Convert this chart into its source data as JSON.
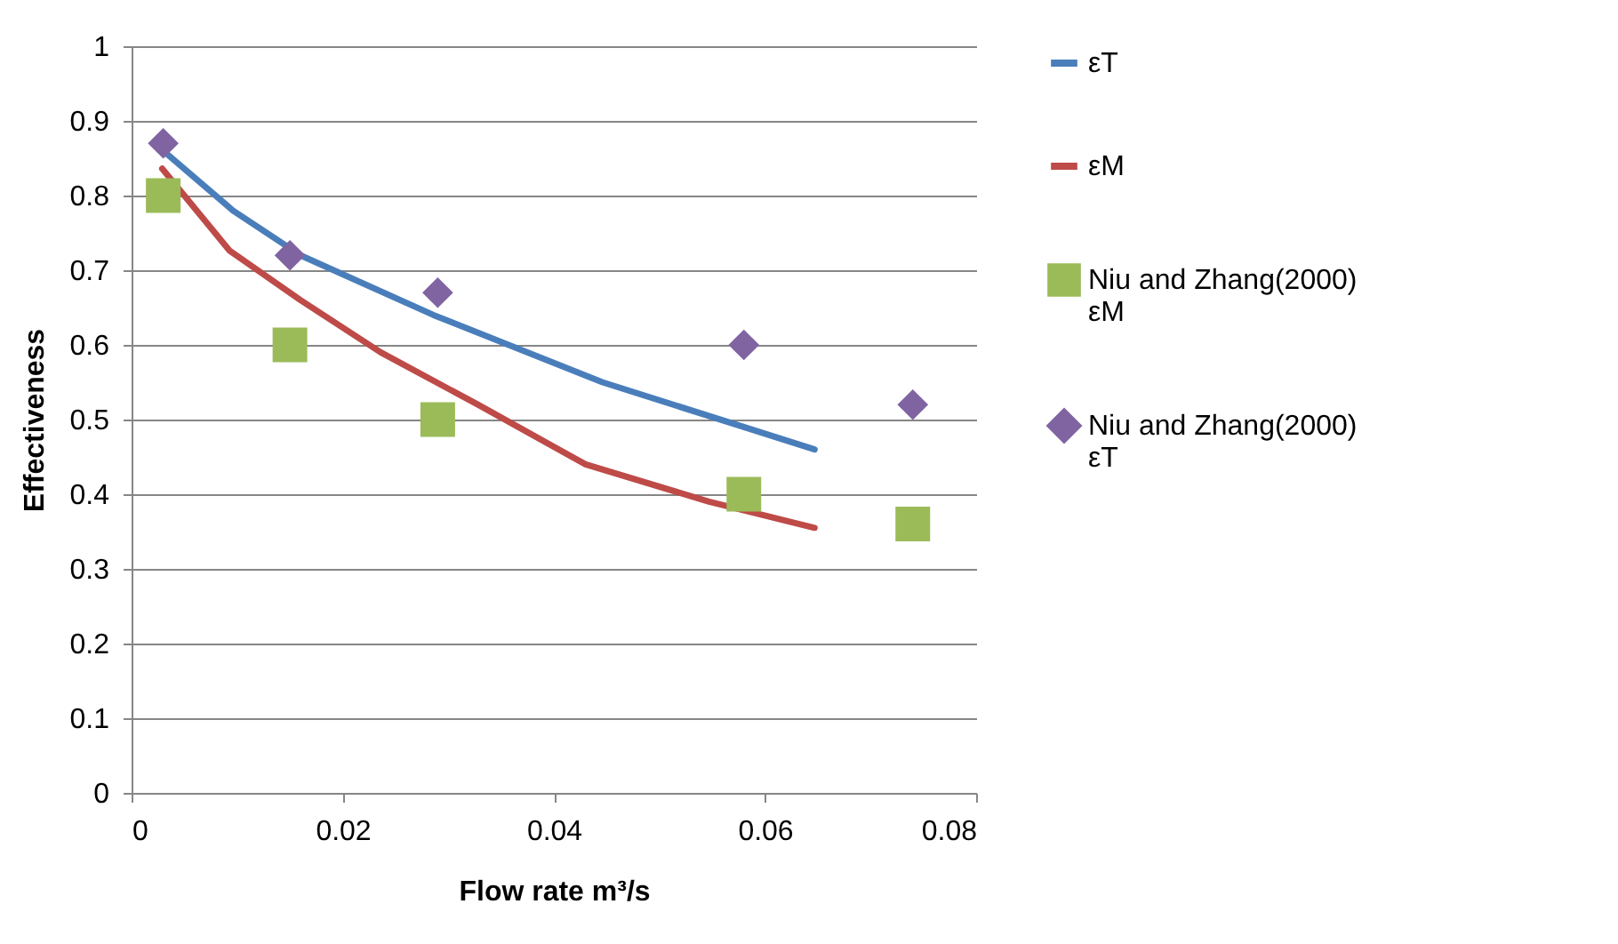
{
  "chart_data": {
    "type": "line",
    "xlabel": "Flow rate m³/s",
    "ylabel": "Effectiveness",
    "xlim": [
      0,
      0.08
    ],
    "ylim": [
      0,
      1
    ],
    "xticks": [
      0,
      0.02,
      0.04,
      0.06,
      0.08
    ],
    "yticks": [
      0,
      0.1,
      0.2,
      0.3,
      0.4,
      0.5,
      0.6,
      0.7,
      0.8,
      0.9,
      1
    ],
    "grid": "y",
    "legend": "right",
    "series": [
      {
        "name": "εT",
        "color": "#4a7ebb",
        "marker": "none",
        "x": [
          0.003,
          0.0096,
          0.016,
          0.0286,
          0.0446,
          0.058,
          0.0647
        ],
        "values": [
          0.86,
          0.78,
          0.72,
          0.64,
          0.55,
          0.49,
          0.46
        ]
      },
      {
        "name": "εM",
        "color": "#be4b48",
        "marker": "none",
        "x": [
          0.0029,
          0.0093,
          0.016,
          0.0236,
          0.0328,
          0.043,
          0.0547,
          0.0647
        ],
        "values": [
          0.836,
          0.726,
          0.66,
          0.59,
          0.52,
          0.44,
          0.39,
          0.355
        ]
      },
      {
        "name": "Niu and Zhang(2000) εM",
        "type": "scatter",
        "color": "#9bbb59",
        "marker": "square",
        "x": [
          0.003,
          0.015,
          0.029,
          0.058,
          0.074
        ],
        "values": [
          0.8,
          0.6,
          0.5,
          0.4,
          0.36
        ]
      },
      {
        "name": "Niu and Zhang(2000) εT",
        "type": "scatter",
        "color": "#8064a2",
        "marker": "diamond",
        "x": [
          0.003,
          0.015,
          0.029,
          0.058,
          0.074
        ],
        "values": [
          0.87,
          0.72,
          0.67,
          0.6,
          0.52
        ]
      }
    ]
  }
}
